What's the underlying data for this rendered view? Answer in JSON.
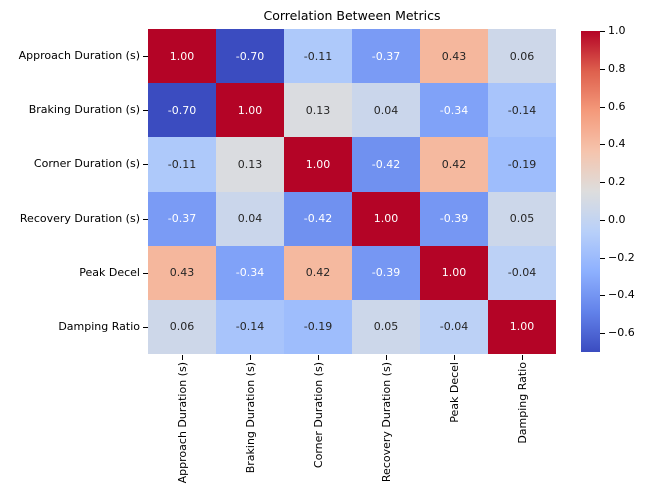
{
  "title": "Correlation Between Metrics",
  "chart_data": {
    "type": "heatmap",
    "categories": [
      "Approach Duration (s)",
      "Braking Duration (s)",
      "Corner Duration (s)",
      "Recovery Duration (s)",
      "Peak Decel",
      "Damping Ratio"
    ],
    "matrix": [
      [
        1.0,
        -0.7,
        -0.11,
        -0.37,
        0.43,
        0.06
      ],
      [
        -0.7,
        1.0,
        0.13,
        0.04,
        -0.34,
        -0.14
      ],
      [
        -0.11,
        0.13,
        1.0,
        -0.42,
        0.42,
        -0.19
      ],
      [
        -0.37,
        0.04,
        -0.42,
        1.0,
        -0.39,
        0.05
      ],
      [
        0.43,
        -0.34,
        0.42,
        -0.39,
        1.0,
        -0.04
      ],
      [
        0.06,
        -0.14,
        -0.19,
        0.05,
        -0.04,
        1.0
      ]
    ],
    "value_format": "2dp",
    "colormap": "coolwarm",
    "vmin": -0.7,
    "vmax": 1.0,
    "colorbar_ticks": [
      {
        "value": 1.0,
        "label": "1.0"
      },
      {
        "value": 0.8,
        "label": "0.8"
      },
      {
        "value": 0.6,
        "label": "0.6"
      },
      {
        "value": 0.4,
        "label": "0.4"
      },
      {
        "value": 0.2,
        "label": "0.2"
      },
      {
        "value": 0.0,
        "label": "0.0"
      },
      {
        "value": -0.2,
        "label": "−0.2"
      },
      {
        "value": -0.4,
        "label": "−0.4"
      },
      {
        "value": -0.6,
        "label": "−0.6"
      }
    ],
    "legend_position": "right-colorbar",
    "grid": false
  },
  "colors": {
    "background": "#ffffff",
    "annot_on_dark": "#ffffff",
    "annot_on_light": "#262626",
    "tick": "#000000"
  }
}
